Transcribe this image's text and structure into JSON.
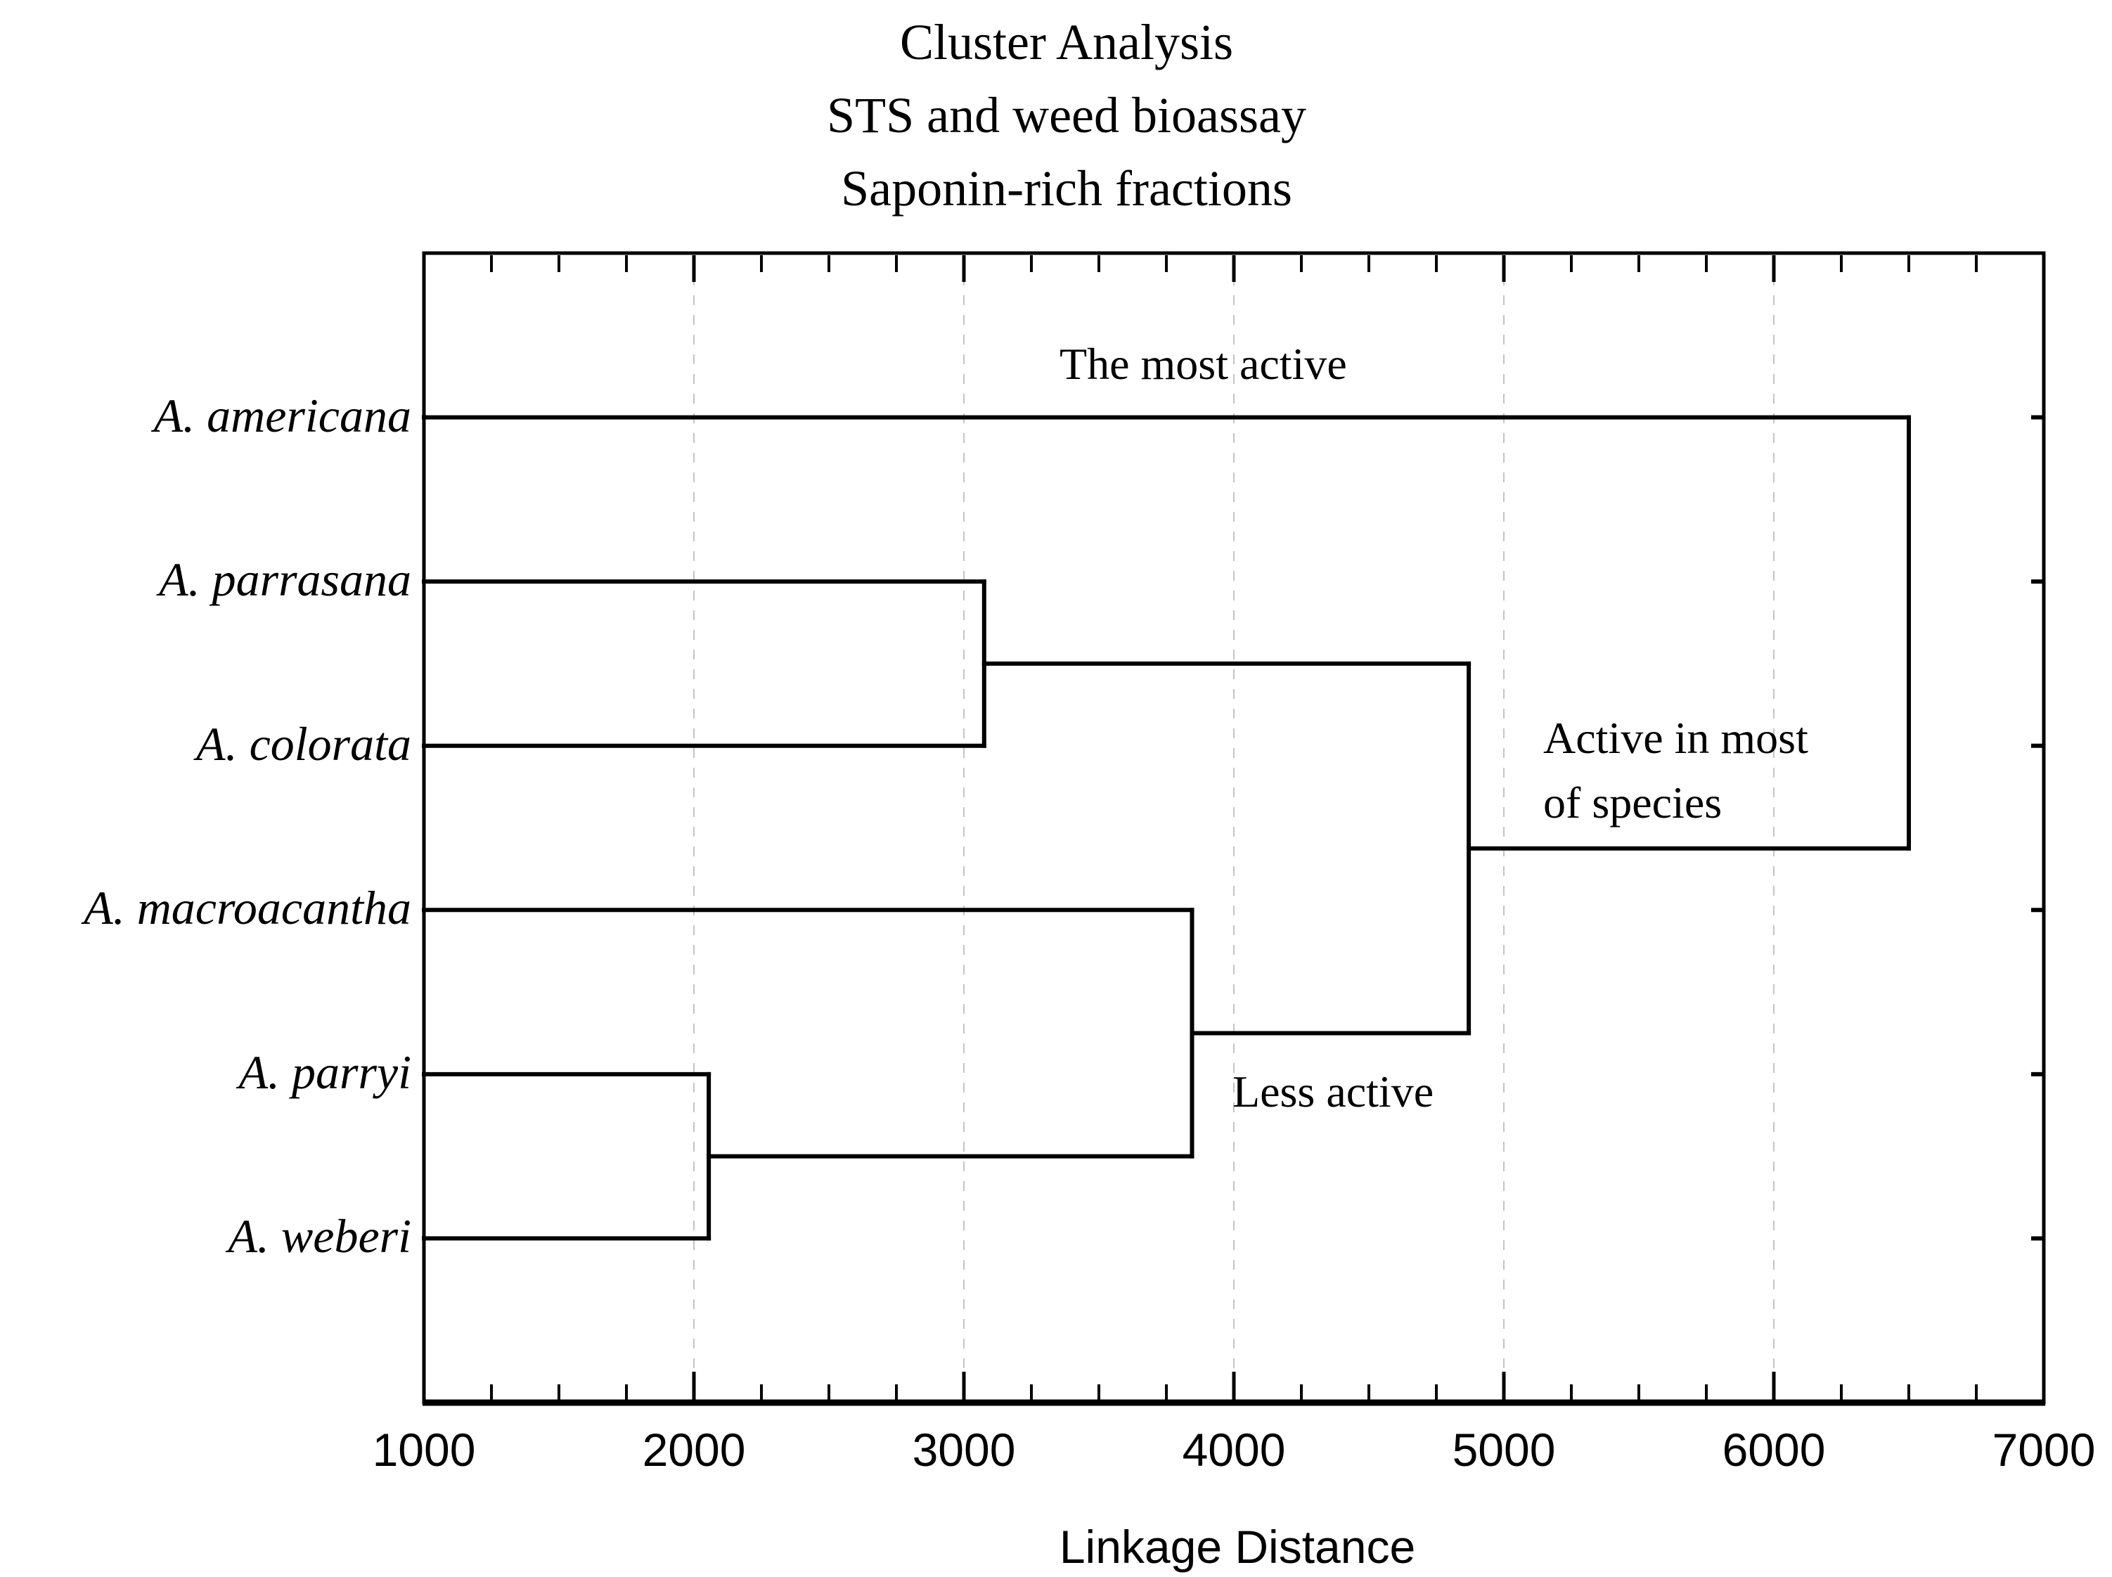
{
  "title": {
    "lines": [
      "Cluster Analysis",
      "STS and weed bioassay",
      "Saponin-rich fractions"
    ]
  },
  "chart_data": {
    "type": "dendrogram",
    "orientation": "horizontal_leaves_left",
    "leaves": [
      "A. americana",
      "A. parrasana",
      "A. colorata",
      "A. macroacantha",
      "A. parryi",
      "A. weberi"
    ],
    "merges": [
      {
        "cluster": "C1",
        "children": [
          "A. parryi",
          "A. weberi"
        ],
        "linkage_distance": 2055
      },
      {
        "cluster": "C2",
        "children": [
          "A. parrasana",
          "A. colorata"
        ],
        "linkage_distance": 3075
      },
      {
        "cluster": "C3",
        "children": [
          "A. macroacantha",
          "C1"
        ],
        "linkage_distance": 3845
      },
      {
        "cluster": "C4",
        "children": [
          "C2",
          "C3"
        ],
        "linkage_distance": 4870
      },
      {
        "cluster": "C5",
        "children": [
          "A. americana",
          "C4"
        ],
        "linkage_distance": 6500
      }
    ],
    "x_axis": {
      "label": "Linkage Distance",
      "min": 1000,
      "max": 7000,
      "tick_labels": [
        "1000",
        "2000",
        "3000",
        "4000",
        "5000",
        "6000",
        "7000"
      ],
      "major_tick_step": 1000,
      "minor_tick_step": 250,
      "gridlines_at": [
        2000,
        3000,
        4000,
        5000,
        6000
      ],
      "gridline_style": "dashed"
    },
    "annotations": [
      {
        "id": "most-active",
        "attached_to": "A. americana",
        "lines": [
          "The most active"
        ]
      },
      {
        "id": "active-in-most",
        "attached_to": "C4",
        "lines": [
          "Active in most",
          "of species"
        ]
      },
      {
        "id": "less-active",
        "attached_to": "C3",
        "lines": [
          "Less active"
        ]
      }
    ],
    "colors": {
      "line": "#000000",
      "gridline": "#c4c4c4",
      "background": "#ffffff"
    }
  }
}
